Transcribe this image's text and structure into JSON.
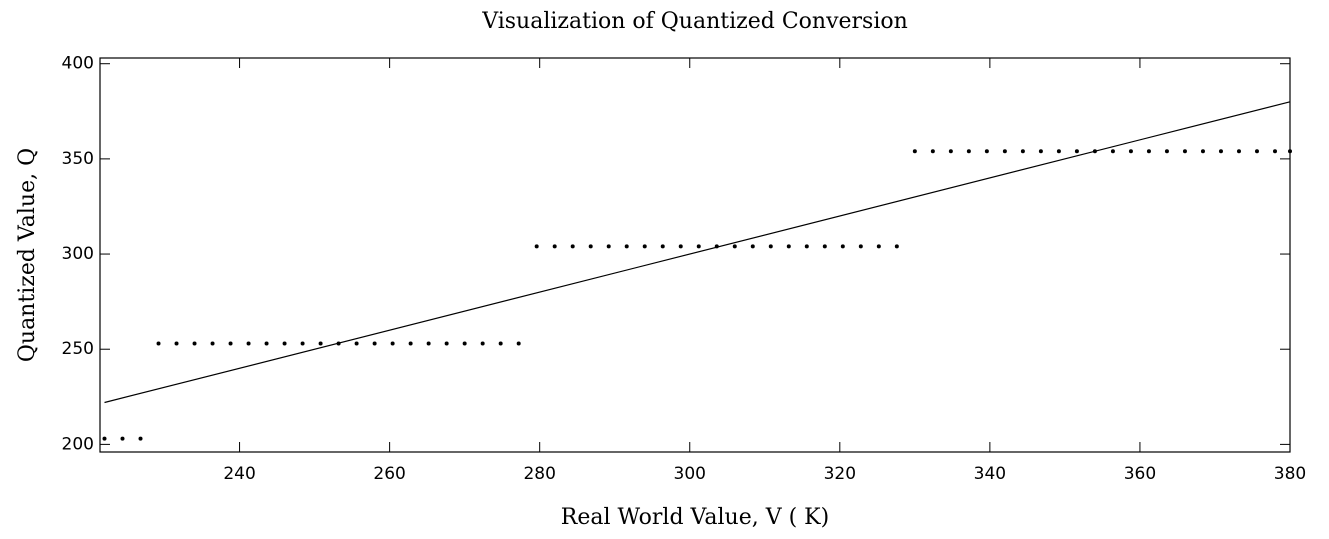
{
  "chart_data": {
    "type": "scatter",
    "title": "Visualization of Quantized Conversion",
    "xlabel": "Real World Value, V ( K)",
    "ylabel": "Quantized Value, Q",
    "xlim": [
      221.4,
      380
    ],
    "ylim": [
      196,
      403
    ],
    "xticks": [
      240,
      260,
      280,
      300,
      320,
      340,
      360,
      380
    ],
    "yticks": [
      200,
      250,
      300,
      350,
      400
    ],
    "grid": false,
    "series": [
      {
        "type": "scatter",
        "color": "#000000",
        "x": [
          222,
          224.4,
          226.8,
          229.2,
          231.6,
          234,
          236.4,
          238.8,
          241.2,
          243.6,
          246,
          248.4,
          250.8,
          253.2,
          255.6,
          258,
          260.4,
          262.8,
          265.2,
          267.6,
          270,
          272.4,
          274.8,
          277.2,
          279.6,
          282,
          284.4,
          286.8,
          289.2,
          291.6,
          294,
          296.4,
          298.8,
          301.2,
          303.6,
          306,
          308.4,
          310.8,
          313.2,
          315.6,
          318,
          320.4,
          322.8,
          325.2,
          327.6,
          330,
          332.4,
          334.8,
          337.2,
          339.6,
          342,
          344.4,
          346.8,
          349.2,
          351.6,
          354,
          356.4,
          358.8,
          361.2,
          363.6,
          366,
          368.4,
          370.8,
          373.2,
          375.6,
          378,
          380
        ],
        "values": [
          203,
          203,
          203,
          253,
          253,
          253,
          253,
          253,
          253,
          253,
          253,
          253,
          253,
          253,
          253,
          253,
          253,
          253,
          253,
          253,
          253,
          253,
          253,
          253,
          304,
          304,
          304,
          304,
          304,
          304,
          304,
          304,
          304,
          304,
          304,
          304,
          304,
          304,
          304,
          304,
          304,
          304,
          304,
          304,
          304,
          354,
          354,
          354,
          354,
          354,
          354,
          354,
          354,
          354,
          354,
          354,
          354,
          354,
          354,
          354,
          354,
          354,
          354,
          354,
          354,
          354,
          354
        ]
      },
      {
        "type": "line",
        "color": "#000000",
        "x": [
          222,
          380
        ],
        "values": [
          222,
          380
        ]
      }
    ]
  }
}
